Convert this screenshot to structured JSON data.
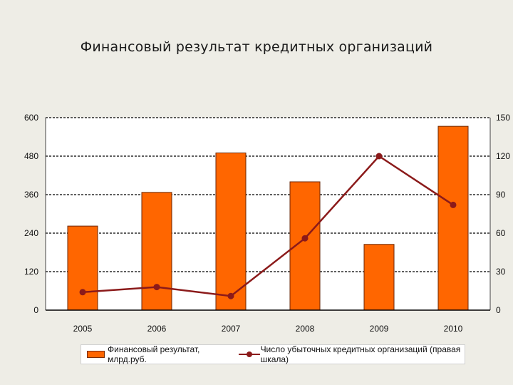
{
  "page": {
    "title": "Финансовый результат кредитных организаций"
  },
  "chart_data": {
    "type": "bar+line",
    "title": "Финансовый результат кредитных организаций",
    "categories": [
      "2005",
      "2006",
      "2007",
      "2008",
      "2009",
      "2010"
    ],
    "series": [
      {
        "name": "Финансовый результат, млрд.руб.",
        "type": "bar",
        "axis": "left",
        "values": [
          262,
          367,
          490,
          400,
          205,
          573
        ],
        "color": "#ff6600"
      },
      {
        "name": "Число убыточных кредитных организаций (правая шкала)",
        "type": "line",
        "axis": "right",
        "values": [
          14,
          18,
          11,
          56,
          120,
          82
        ],
        "color": "#8b1a1a"
      }
    ],
    "y_left": {
      "ticks": [
        "0",
        "120",
        "240",
        "360",
        "480",
        "600"
      ],
      "ylim": [
        0,
        600
      ]
    },
    "y_right": {
      "ticks": [
        "0",
        "30",
        "60",
        "90",
        "120",
        "150"
      ],
      "ylim": [
        0,
        150
      ]
    },
    "grid": "horizontal dashed",
    "legend_placement": "bottom"
  }
}
